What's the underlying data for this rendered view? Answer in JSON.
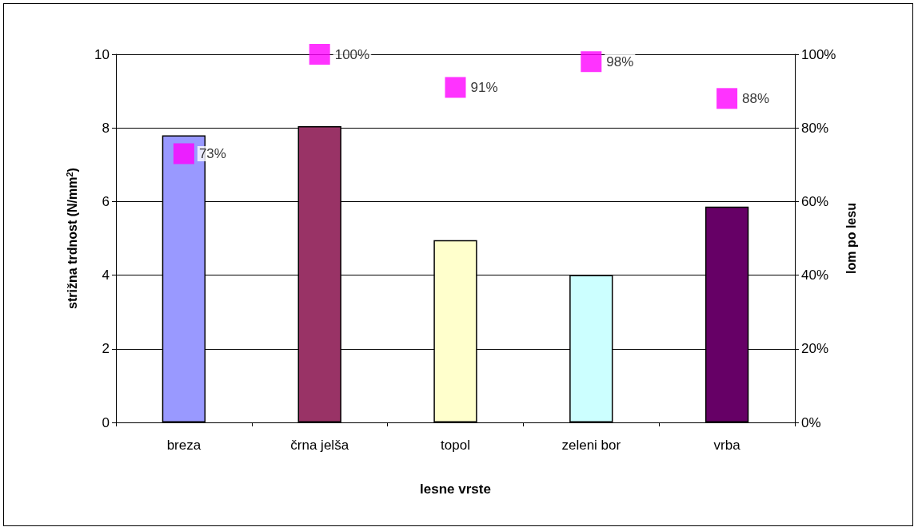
{
  "chart_data": {
    "type": "bar",
    "xlabel": "lesne vrste",
    "ylabel": "strižna trdnost (N/mm$^{2}$)",
    "y2label": "lom po lesu",
    "categories": [
      "breza",
      "črna jelša",
      "topol",
      "zeleni bor",
      "vrba"
    ],
    "series": [
      {
        "values": [
          7.8,
          8.05,
          4.95,
          4.0,
          5.86
        ],
        "colors": [
          "#9999ff",
          "#993366",
          "#ffffcc",
          "#ccffff",
          "#660066"
        ]
      },
      {
        "type": "scatter",
        "axis": "y2",
        "color": "#ff00ff",
        "marker": "square",
        "values": [
          73,
          100,
          91,
          98,
          88
        ],
        "value_labels": [
          "73%",
          "100%",
          "91%",
          "98%",
          "88%"
        ]
      }
    ],
    "ylim": [
      0,
      10
    ],
    "yticks": [
      0,
      2,
      4,
      6,
      8,
      10
    ],
    "y2lim": [
      0,
      100
    ],
    "y2ticks": [
      {
        "value": 0,
        "label": "0%"
      },
      {
        "value": 20,
        "label": "20%"
      },
      {
        "value": 40,
        "label": "40%"
      },
      {
        "value": 60,
        "label": "60%"
      },
      {
        "value": 80,
        "label": "80%"
      },
      {
        "value": 100,
        "label": "100%"
      }
    ],
    "grid": "y"
  }
}
